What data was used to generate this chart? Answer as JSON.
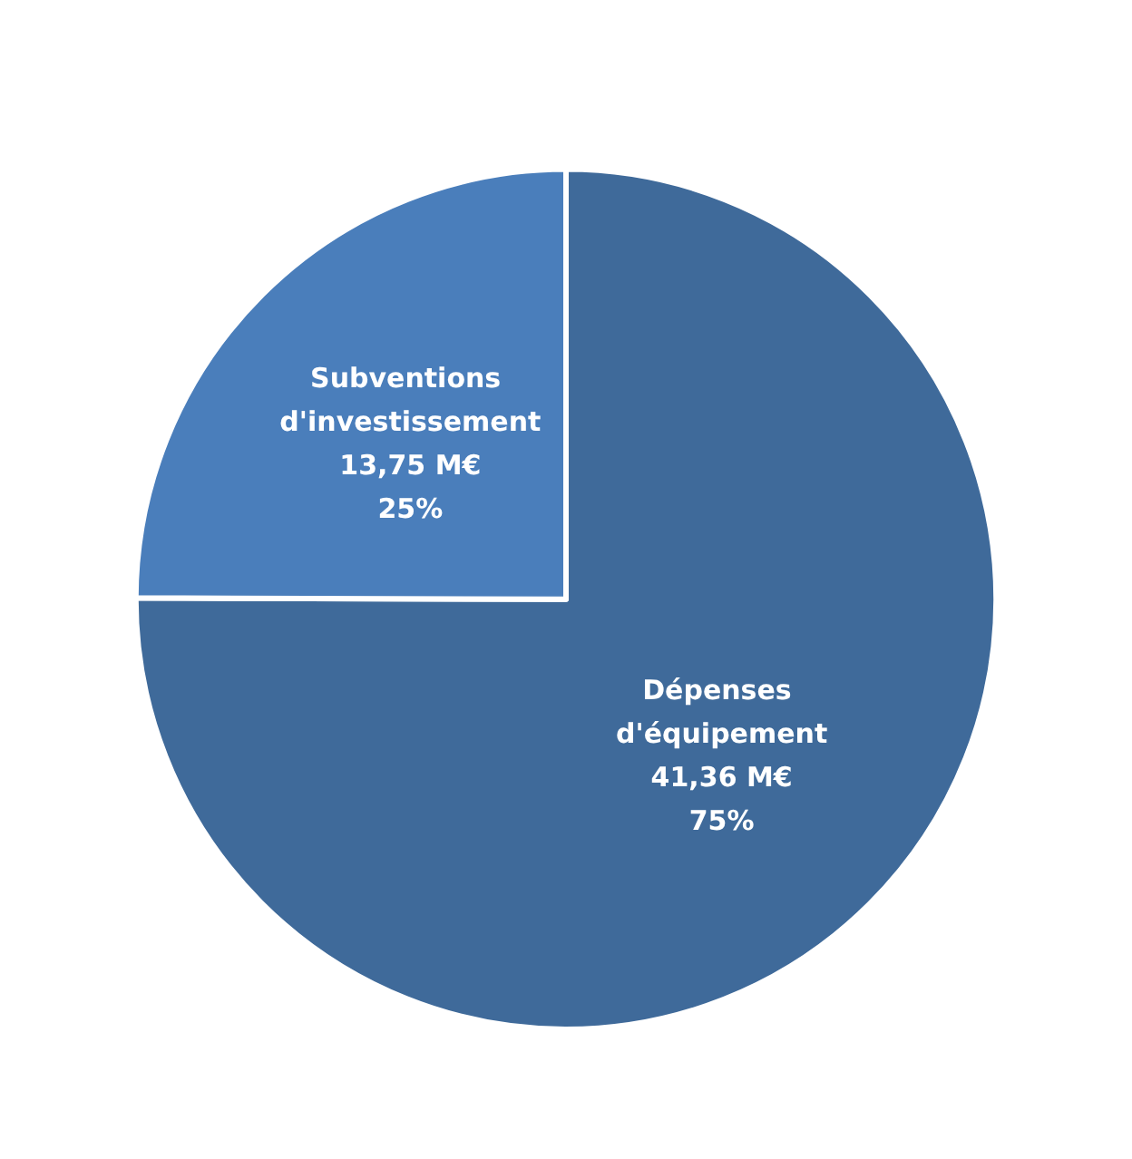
{
  "chart_data": {
    "type": "pie",
    "categories": [
      "Dépenses d'équipement",
      "Subventions d'investissement"
    ],
    "values": [
      41.36,
      13.75
    ],
    "colors": [
      "#3f6a9a",
      "#4a7ebb"
    ],
    "value_labels": [
      "41,36 M€\n75%",
      "13,75 M€\n25%"
    ],
    "legend": false
  }
}
